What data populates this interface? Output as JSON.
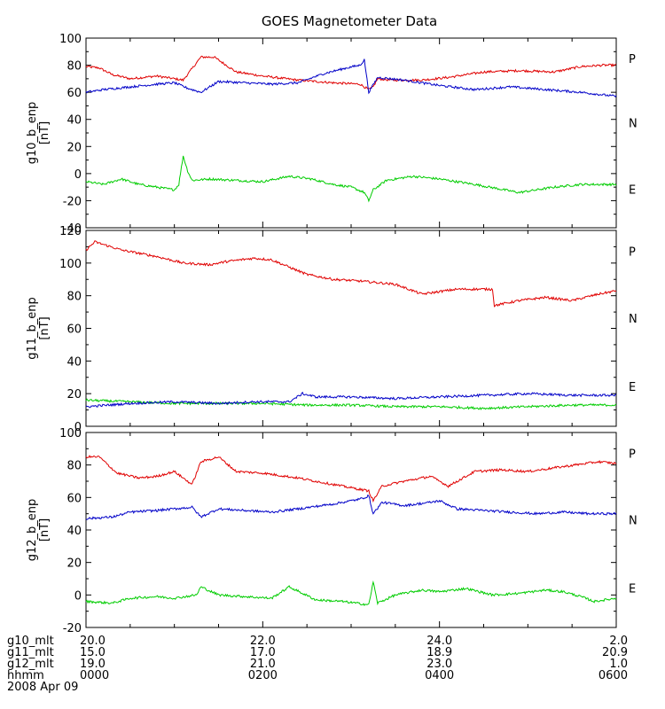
{
  "chart_data": {
    "type": "line",
    "title": "GOES Magnetometer Data",
    "x_range_hours": [
      0,
      6
    ],
    "panels": [
      {
        "ylabel": "g10_b_enp",
        "unit": "[nT]",
        "ylim": [
          -40,
          100
        ],
        "yticks": [
          "-40",
          "-20",
          "0",
          "20",
          "40",
          "60",
          "80",
          "100"
        ],
        "ytick_values": [
          -40,
          -20,
          0,
          20,
          40,
          60,
          80,
          100
        ],
        "legend": [
          {
            "label": "P",
            "color": "#e00000"
          },
          {
            "label": "N",
            "color": "#00cc00"
          },
          {
            "label": "E",
            "color": "#0000c8"
          }
        ],
        "series": [
          {
            "name": "P",
            "color": "#e00000",
            "x": [
              0,
              0.15,
              0.3,
              0.5,
              0.8,
              1.1,
              1.3,
              1.45,
              1.7,
              2.0,
              2.4,
              2.8,
              3.1,
              3.2,
              3.25,
              3.3,
              3.45,
              3.6,
              3.8,
              4.1,
              4.5,
              4.9,
              5.3,
              5.6,
              5.85,
              6.0
            ],
            "y": [
              79,
              78,
              73,
              70,
              72,
              69,
              86,
              86,
              75,
              72,
              69,
              67,
              66,
              62,
              64,
              70,
              69,
              69,
              69,
              71,
              75,
              76,
              75,
              79,
              80,
              80
            ]
          },
          {
            "name": "N",
            "color": "#00cc00",
            "x": [
              0,
              0.2,
              0.4,
              0.6,
              0.8,
              1.0,
              1.05,
              1.1,
              1.15,
              1.2,
              1.4,
              1.7,
              2.0,
              2.3,
              2.55,
              2.8,
              3.0,
              3.15,
              3.2,
              3.25,
              3.4,
              3.7,
              4.0,
              4.4,
              4.9,
              5.3,
              5.6,
              6.0
            ],
            "y": [
              -6,
              -8,
              -4,
              -8,
              -10,
              -12,
              -8,
              13,
              2,
              -5,
              -4,
              -5,
              -6,
              -2,
              -4,
              -8,
              -10,
              -14,
              -20,
              -12,
              -5,
              -2,
              -4,
              -8,
              -14,
              -10,
              -8,
              -8
            ]
          },
          {
            "name": "E",
            "color": "#0000c8",
            "x": [
              0,
              0.2,
              0.5,
              0.8,
              1.0,
              1.15,
              1.3,
              1.5,
              1.8,
              2.1,
              2.4,
              2.7,
              2.95,
              3.1,
              3.15,
              3.2,
              3.3,
              3.6,
              4.0,
              4.4,
              4.8,
              5.2,
              5.6,
              6.0
            ],
            "y": [
              60,
              62,
              64,
              66,
              67,
              63,
              60,
              68,
              67,
              66,
              67,
              74,
              78,
              80,
              84,
              60,
              71,
              69,
              65,
              62,
              64,
              62,
              60,
              57
            ]
          }
        ]
      },
      {
        "ylabel": "g11_b_enp",
        "unit": "[nT]",
        "ylim": [
          0,
          120
        ],
        "yticks": [
          "0",
          "20",
          "40",
          "60",
          "80",
          "100",
          "120"
        ],
        "ytick_values": [
          0,
          20,
          40,
          60,
          80,
          100,
          120
        ],
        "legend": [
          {
            "label": "P",
            "color": "#e00000"
          },
          {
            "label": "N",
            "color": "#00cc00"
          },
          {
            "label": "E",
            "color": "#0000c8"
          }
        ],
        "series": [
          {
            "name": "P",
            "color": "#e00000",
            "x": [
              0,
              0.1,
              0.4,
              0.8,
              1.1,
              1.4,
              1.6,
              1.9,
              2.1,
              2.5,
              2.8,
              3.1,
              3.5,
              3.8,
              4.2,
              4.6,
              4.62,
              4.9,
              5.2,
              5.5,
              5.8,
              6.0
            ],
            "y": [
              108,
              113,
              108,
              104,
              100,
              99,
              101,
              103,
              102,
              93,
              90,
              89,
              87,
              81,
              84,
              84,
              74,
              77,
              79,
              77,
              81,
              83
            ]
          },
          {
            "name": "N",
            "color": "#00cc00",
            "x": [
              0,
              0.5,
              1.0,
              1.5,
              2.0,
              2.5,
              3.0,
              3.5,
              4.0,
              4.5,
              5.0,
              5.5,
              6.0
            ],
            "y": [
              16,
              15,
              14,
              14,
              14,
              13,
              13,
              12,
              12,
              11,
              12,
              13,
              13
            ]
          },
          {
            "name": "E",
            "color": "#0000c8",
            "x": [
              0,
              0.5,
              1.0,
              1.5,
              1.9,
              2.3,
              2.45,
              2.6,
              3.0,
              3.5,
              4.0,
              4.5,
              5.0,
              5.5,
              6.0
            ],
            "y": [
              12,
              14,
              15,
              14,
              15,
              15,
              20,
              18,
              18,
              17,
              18,
              19,
              20,
              19,
              19
            ]
          }
        ]
      },
      {
        "ylabel": "g12_b_enp",
        "unit": "[nT]",
        "ylim": [
          -20,
          100
        ],
        "yticks": [
          "-20",
          "0",
          "20",
          "40",
          "60",
          "80",
          "100"
        ],
        "ytick_values": [
          -20,
          0,
          20,
          40,
          60,
          80,
          100
        ],
        "legend": [
          {
            "label": "P",
            "color": "#e00000"
          },
          {
            "label": "N",
            "color": "#00cc00"
          },
          {
            "label": "E",
            "color": "#0000c8"
          }
        ],
        "series": [
          {
            "name": "P",
            "color": "#e00000",
            "x": [
              0,
              0.15,
              0.35,
              0.6,
              0.8,
              1.0,
              1.2,
              1.3,
              1.5,
              1.7,
              2.0,
              2.4,
              2.7,
              3.0,
              3.2,
              3.25,
              3.35,
              3.6,
              3.9,
              4.1,
              4.4,
              4.7,
              5.0,
              5.4,
              5.8,
              6.0
            ],
            "y": [
              85,
              85,
              75,
              72,
              73,
              76,
              68,
              82,
              85,
              76,
              75,
              72,
              69,
              66,
              64,
              58,
              67,
              70,
              73,
              67,
              76,
              77,
              76,
              79,
              82,
              81
            ]
          },
          {
            "name": "N",
            "color": "#00cc00",
            "x": [
              0,
              0.3,
              0.5,
              0.8,
              1.0,
              1.25,
              1.3,
              1.5,
              1.8,
              2.1,
              2.3,
              2.6,
              2.9,
              3.2,
              3.25,
              3.3,
              3.5,
              3.8,
              4.0,
              4.3,
              4.6,
              4.9,
              5.2,
              5.4,
              5.6,
              5.75,
              6.0
            ],
            "y": [
              -4,
              -5,
              -2,
              -1,
              -2,
              0,
              5,
              0,
              -1,
              -2,
              5,
              -3,
              -4,
              -6,
              8,
              -5,
              0,
              3,
              2,
              4,
              0,
              1,
              3,
              2,
              -1,
              -4,
              -2
            ]
          },
          {
            "name": "E",
            "color": "#0000c8",
            "x": [
              0,
              0.3,
              0.5,
              0.8,
              1.0,
              1.2,
              1.3,
              1.5,
              1.8,
              2.1,
              2.4,
              2.8,
              3.1,
              3.2,
              3.25,
              3.35,
              3.6,
              3.9,
              4.0,
              4.2,
              4.5,
              4.8,
              5.1,
              5.4,
              5.7,
              6.0
            ],
            "y": [
              47,
              48,
              51,
              52,
              53,
              54,
              48,
              53,
              52,
              51,
              53,
              56,
              59,
              61,
              50,
              57,
              55,
              57,
              58,
              53,
              52,
              51,
              50,
              51,
              50,
              50
            ]
          }
        ]
      }
    ],
    "x_ticks": [
      {
        "hours": 0,
        "g10_mlt": "20.0",
        "g11_mlt": "15.0",
        "g12_mlt": "19.0",
        "hhmm": "0000"
      },
      {
        "hours": 2,
        "g10_mlt": "22.0",
        "g11_mlt": "17.0",
        "g12_mlt": "21.0",
        "hhmm": "0200"
      },
      {
        "hours": 4,
        "g10_mlt": "24.0",
        "g11_mlt": "18.9",
        "g12_mlt": "23.0",
        "hhmm": "0400"
      },
      {
        "hours": 6,
        "g10_mlt": "2.0",
        "g11_mlt": "20.9",
        "g12_mlt": "1.0",
        "hhmm": "0600"
      }
    ],
    "x_row_labels": [
      "g10_mlt",
      "g11_mlt",
      "g12_mlt",
      "hhmm"
    ],
    "date": "2008 Apr 09"
  }
}
